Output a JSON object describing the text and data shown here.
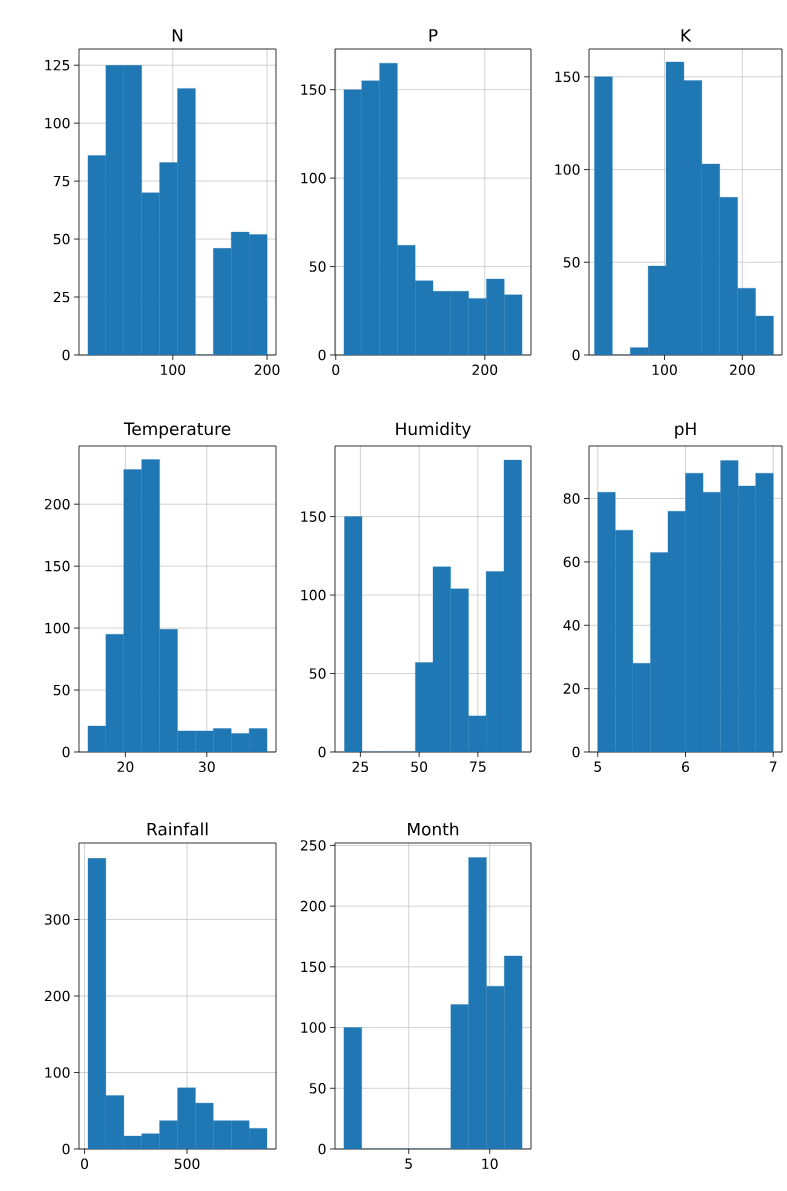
{
  "chart_data": [
    {
      "type": "histogram",
      "title": "N",
      "bins": [
        10,
        29,
        48,
        67,
        86,
        105,
        124,
        143,
        162,
        181,
        200
      ],
      "values": [
        86,
        125,
        125,
        70,
        83,
        115,
        0,
        46,
        53,
        52
      ],
      "color": "#1f77b4",
      "xlim": [
        0.5,
        209.5
      ],
      "xticks": [
        100,
        200
      ],
      "ylim": [
        0,
        132
      ],
      "yticks": [
        0,
        25,
        50,
        75,
        100,
        125
      ],
      "grid": true
    },
    {
      "type": "histogram",
      "title": "P",
      "bins": [
        11,
        34.9,
        58.8,
        82.7,
        106.6,
        130.5,
        154.4,
        178.3,
        202.2,
        226.1,
        250
      ],
      "values": [
        150,
        155,
        165,
        62,
        42,
        36,
        36,
        32,
        43,
        34
      ],
      "color": "#1f77b4",
      "xlim": [
        -1,
        262
      ],
      "xticks": [
        0,
        200
      ],
      "ylim": [
        0,
        173
      ],
      "yticks": [
        0,
        50,
        100,
        150
      ],
      "grid": true
    },
    {
      "type": "histogram",
      "title": "K",
      "bins": [
        10,
        33,
        56,
        79,
        102,
        125,
        148,
        171,
        194,
        217,
        240
      ],
      "values": [
        150,
        0,
        4,
        48,
        158,
        148,
        103,
        85,
        36,
        21
      ],
      "color": "#1f77b4",
      "xlim": [
        3,
        251
      ],
      "xticks": [
        100,
        200
      ],
      "ylim": [
        0,
        165
      ],
      "yticks": [
        0,
        50,
        100,
        150
      ],
      "grid": true
    },
    {
      "type": "histogram",
      "title": "Temperature",
      "bins": [
        15.4,
        17.6,
        19.8,
        22.0,
        24.2,
        26.4,
        28.6,
        30.8,
        33.0,
        35.2,
        37.4
      ],
      "values": [
        21,
        95,
        228,
        236,
        99,
        17,
        17,
        19,
        15,
        19
      ],
      "color": "#1f77b4",
      "xlim": [
        14.3,
        38.5
      ],
      "xticks": [
        20,
        30
      ],
      "ylim": [
        0,
        247
      ],
      "yticks": [
        0,
        50,
        100,
        150,
        200
      ],
      "grid": true
    },
    {
      "type": "histogram",
      "title": "Humidity",
      "bins": [
        18.2,
        25.7,
        33.3,
        40.8,
        48.4,
        55.9,
        63.4,
        71.0,
        78.5,
        86.1,
        93.6
      ],
      "values": [
        150,
        0,
        0,
        0,
        57,
        118,
        104,
        23,
        115,
        186
      ],
      "color": "#1f77b4",
      "xlim": [
        14.2,
        97.6
      ],
      "xticks": [
        25,
        50,
        75
      ],
      "ylim": [
        0,
        195
      ],
      "yticks": [
        0,
        50,
        100,
        150
      ],
      "grid": true
    },
    {
      "type": "histogram",
      "title": "pH",
      "bins": [
        5.0,
        5.2,
        5.4,
        5.6,
        5.8,
        6.0,
        6.2,
        6.4,
        6.6,
        6.8,
        7.0
      ],
      "values": [
        82,
        70,
        28,
        63,
        76,
        88,
        82,
        92,
        84,
        88
      ],
      "color": "#1f77b4",
      "xlim": [
        4.9,
        7.1
      ],
      "xticks": [
        5,
        6,
        7
      ],
      "ylim": [
        0,
        96.6
      ],
      "yticks": [
        0,
        20,
        40,
        60,
        80
      ],
      "grid": true
    },
    {
      "type": "histogram",
      "title": "Rainfall",
      "bins": [
        17,
        104,
        192,
        279,
        366,
        454,
        541,
        628,
        716,
        803,
        890
      ],
      "values": [
        380,
        70,
        17,
        20,
        37,
        80,
        60,
        37,
        37,
        27
      ],
      "color": "#1f77b4",
      "xlim": [
        -27,
        934
      ],
      "xticks": [
        0,
        500
      ],
      "ylim": [
        0,
        400
      ],
      "yticks": [
        0,
        100,
        200,
        300
      ],
      "grid": true
    },
    {
      "type": "histogram",
      "title": "Month",
      "bins": [
        1,
        2.1,
        3.2,
        4.3,
        5.4,
        6.5,
        7.6,
        8.7,
        9.8,
        10.9,
        12
      ],
      "values": [
        100,
        0,
        0,
        0,
        0,
        0,
        119,
        240,
        134,
        159
      ],
      "color": "#1f77b4",
      "xlim": [
        0.45,
        12.55
      ],
      "xticks": [
        5,
        10
      ],
      "ylim": [
        0,
        252
      ],
      "yticks": [
        0,
        50,
        100,
        150,
        200,
        250
      ],
      "grid": true
    }
  ]
}
